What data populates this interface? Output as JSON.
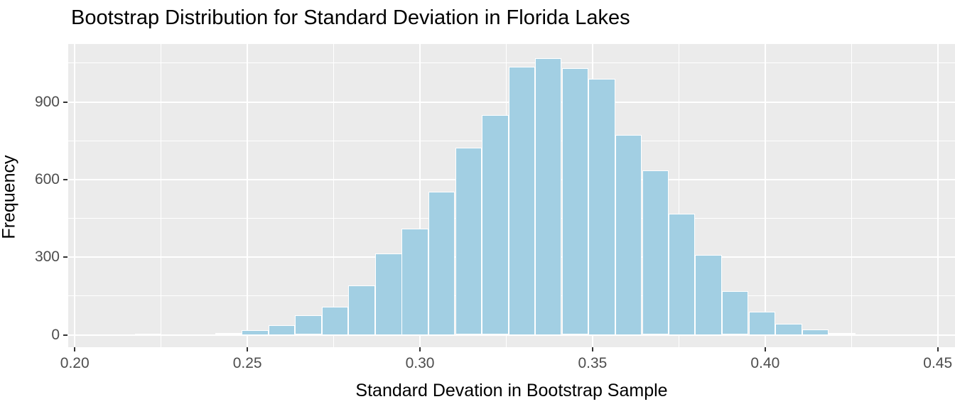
{
  "title": "Bootstrap Distribution for Standard Deviation in Florida Lakes",
  "chart_data": {
    "type": "bar",
    "subtype": "histogram",
    "title": "Bootstrap Distribution for Standard Deviation in Florida Lakes",
    "xlabel": "Standard Devation in Bootstrap Sample",
    "ylabel": "Frequency",
    "legend": "none",
    "grid": "on",
    "bin_width": 0.00772,
    "bin_centers": [
      0.2136,
      0.2213,
      0.229,
      0.2368,
      0.2445,
      0.2522,
      0.26,
      0.2677,
      0.2754,
      0.2831,
      0.2909,
      0.2986,
      0.3063,
      0.3141,
      0.3218,
      0.3295,
      0.3372,
      0.345,
      0.3527,
      0.3604,
      0.3682,
      0.3759,
      0.3836,
      0.3913,
      0.3991,
      0.4068,
      0.4145,
      0.4223,
      0.43,
      0.4377
    ],
    "counts": [
      2,
      3,
      0,
      2,
      6,
      18,
      36,
      75,
      108,
      190,
      313,
      410,
      553,
      724,
      850,
      1035,
      1070,
      1030,
      990,
      774,
      636,
      468,
      310,
      170,
      90,
      43,
      20,
      6,
      0,
      2
    ],
    "x_ticks": [
      0.2,
      0.25,
      0.3,
      0.35,
      0.4,
      0.45
    ],
    "x_tick_labels": [
      "0.20",
      "0.25",
      "0.30",
      "0.35",
      "0.40",
      "0.45"
    ],
    "x_minor_ticks": [
      0.225,
      0.275,
      0.325,
      0.375,
      0.425
    ],
    "y_ticks": [
      0,
      300,
      600,
      900
    ],
    "y_tick_labels": [
      "0",
      "300",
      "600",
      "900"
    ],
    "y_minor_ticks": [
      150,
      450,
      750,
      1050
    ],
    "x_domain": [
      0.1981,
      0.455
    ],
    "y_domain": [
      -48,
      1124
    ],
    "colors": {
      "bar_fill": "#A2CFE3",
      "bar_stroke": "#FFFFFF",
      "panel_bg": "#EBEBEB",
      "gridline": "#FFFFFF",
      "tick_label": "#4D4D4D",
      "tick_mark": "#333333",
      "axis_text": "#000000"
    }
  }
}
